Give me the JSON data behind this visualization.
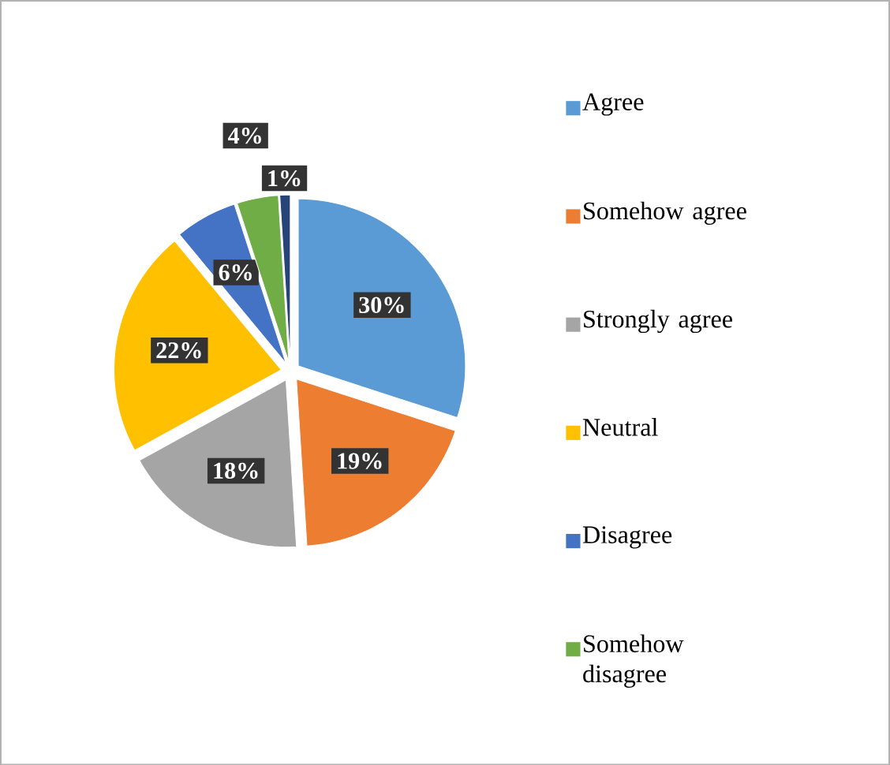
{
  "chart_data": {
    "type": "pie",
    "categories": [
      "Agree",
      "Somehow agree",
      "Strongly agree",
      "Neutral",
      "Disagree",
      "Somehow disagree",
      null
    ],
    "values": [
      30,
      19,
      18,
      22,
      6,
      4,
      1
    ],
    "value_labels": [
      "30%",
      "19%",
      "18%",
      "22%",
      "6%",
      "4%",
      "1%"
    ],
    "colors": [
      "#5b9bd5",
      "#ed7d31",
      "#a5a5a5",
      "#ffc000",
      "#4472c4",
      "#70ad47",
      "#264478"
    ],
    "legend": "right"
  }
}
